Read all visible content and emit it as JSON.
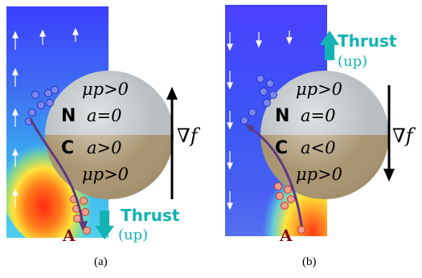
{
  "colors": {
    "field_blue": "#3b46ff",
    "field_cyan": "#3fd7e6",
    "field_yellow": "#ffe33a",
    "field_red": "#ff2a12",
    "sphere_top": "#b9bfc2",
    "sphere_bottom": "#a99570",
    "thrust_teal": "#12b3b2",
    "trajectory": "#5b3a86",
    "particle_blue": "#3b4ae6",
    "particle_red": "#e0584c",
    "label_A": "#8b0a0a"
  },
  "panels": [
    {
      "id": "a",
      "caption": "(a)",
      "cap_N": {
        "letter": "N",
        "mobility": "μp>0",
        "activity": "a=0"
      },
      "cap_C": {
        "letter": "C",
        "mobility": "μp>0",
        "activity": "a>0"
      },
      "gradient_label": "∇f",
      "gradient_direction": "up",
      "thrust": {
        "label": "Thrust",
        "sub": "(up)",
        "direction": "down"
      },
      "flow_direction": "up",
      "point_label": "A"
    },
    {
      "id": "b",
      "caption": "(b)",
      "cap_N": {
        "letter": "N",
        "mobility": "μp>0",
        "activity": "a=0"
      },
      "cap_C": {
        "letter": "C",
        "mobility": "μp>0",
        "activity": "a<0"
      },
      "gradient_label": "∇f",
      "gradient_direction": "down",
      "thrust": {
        "label": "Thrust",
        "sub": "(up)",
        "direction": "up"
      },
      "flow_direction": "down",
      "point_label": "A"
    }
  ]
}
